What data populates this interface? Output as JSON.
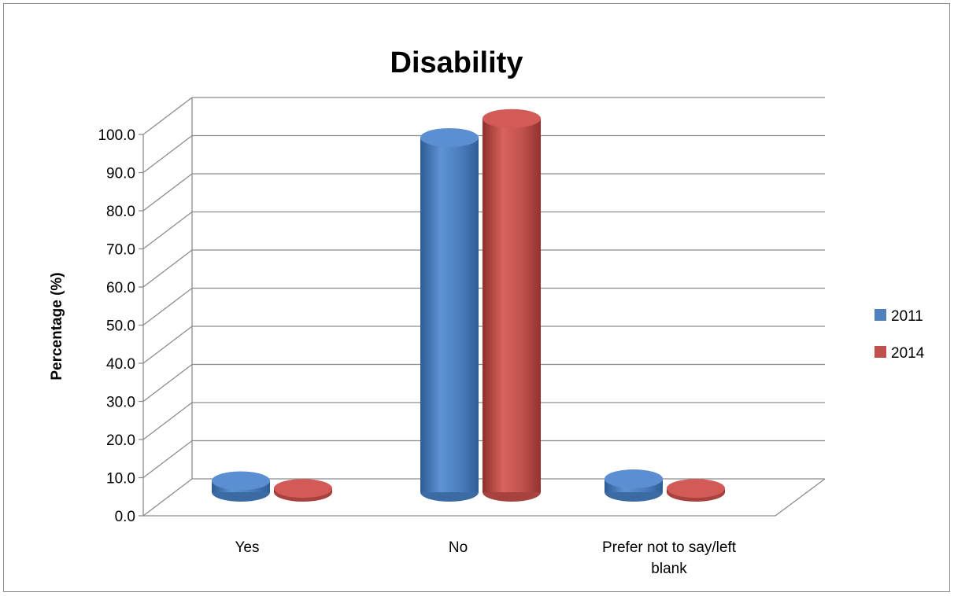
{
  "chart_data": {
    "type": "bar",
    "style": "3d-cylinder",
    "title": "Disability",
    "xlabel": "",
    "ylabel": "Percentage (%)",
    "ylim": [
      0,
      100
    ],
    "yticks": [
      "0.0",
      "10.0",
      "20.0",
      "30.0",
      "40.0",
      "50.0",
      "60.0",
      "70.0",
      "80.0",
      "90.0",
      "100.0"
    ],
    "categories": [
      "Yes",
      "No",
      "Prefer not to say/left blank"
    ],
    "series": [
      {
        "name": "2011",
        "color": "#4F81BD",
        "values": [
          3.0,
          93.0,
          3.5
        ]
      },
      {
        "name": "2014",
        "color": "#C0504D",
        "values": [
          1.0,
          98.0,
          1.0
        ]
      }
    ],
    "grid": true,
    "legend": "right"
  }
}
